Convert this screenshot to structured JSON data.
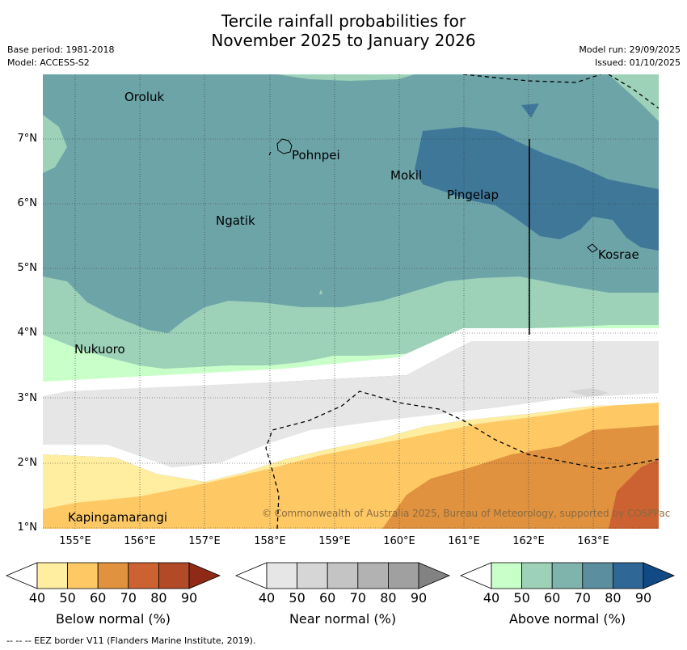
{
  "title_line1": "Tercile rainfall probabilities for",
  "title_line2": "November 2025 to January 2026",
  "meta": {
    "base_period": "Base period: 1981-2018",
    "model": "Model: ACCESS-S2",
    "model_run": "Model run: 29/09/2025",
    "issued": "Issued: 01/10/2025"
  },
  "axes": {
    "lat_labels": [
      "7°N",
      "6°N",
      "5°N",
      "4°N",
      "3°N",
      "2°N",
      "1°N"
    ],
    "lon_labels": [
      "155°E",
      "156°E",
      "157°E",
      "158°E",
      "159°E",
      "160°E",
      "161°E",
      "162°E",
      "163°E"
    ]
  },
  "places": [
    "Oroluk",
    "Pohnpei",
    "Mokil",
    "Pingelap",
    "Ngatik",
    "Kosrae",
    "Nukuoro",
    "Kapingamarangi"
  ],
  "copyright": "© Commonwealth of Australia 2025, Bureau of Meteorology, supported by COSPPac",
  "colorbars": [
    {
      "label": "Below normal (%)",
      "ticks": [
        "40",
        "50",
        "60",
        "70",
        "80",
        "90"
      ],
      "colors": [
        "#ffffff",
        "#ffeda0",
        "#fec965",
        "#e0923f",
        "#cc6231",
        "#b24a28",
        "#8f2a16"
      ]
    },
    {
      "label": "Near normal (%)",
      "ticks": [
        "40",
        "50",
        "60",
        "70",
        "80",
        "90"
      ],
      "colors": [
        "#ffffff",
        "#e6e6e6",
        "#d6d6d6",
        "#c4c4c4",
        "#b2b2b2",
        "#a0a0a0",
        "#828282"
      ]
    },
    {
      "label": "Above normal (%)",
      "ticks": [
        "40",
        "50",
        "60",
        "70",
        "80",
        "90"
      ],
      "colors": [
        "#ffffff",
        "#c9ffc9",
        "#9dd2b8",
        "#7fb4ad",
        "#5b8fa0",
        "#2f6796",
        "#124a86"
      ]
    }
  ],
  "footer": "-- -- -- EEZ border V11 (Flanders Marine Institute, 2019)."
}
